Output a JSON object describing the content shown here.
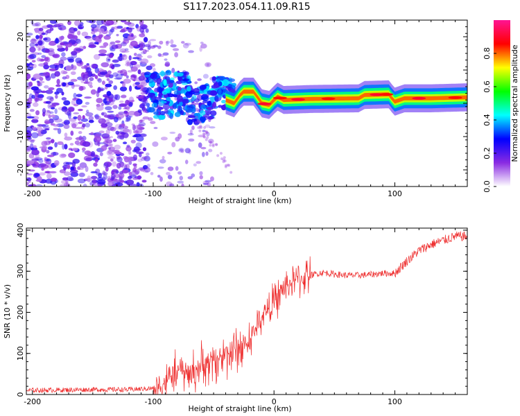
{
  "title": "S117.2023.054.11.09.R15",
  "chart_data": [
    {
      "type": "heatmap",
      "xlabel": "Height of straight line (km)",
      "ylabel": "Frequency (Hz)",
      "xlim": [
        -205,
        160
      ],
      "ylim": [
        -25,
        25
      ],
      "xticks": [
        -200,
        -100,
        0,
        100
      ],
      "yticks": [
        -20,
        -10,
        0,
        10,
        20
      ],
      "colorbar": {
        "label": "Normalized spectral amplitude",
        "range": [
          0,
          1
        ],
        "ticks": [
          0.0,
          0.2,
          0.4,
          0.6,
          0.8
        ],
        "colormap": [
          "#ffffff",
          "#8a2be2",
          "#0000ff",
          "#00ffff",
          "#00ff00",
          "#ffff00",
          "#ff0000",
          "#ff1493"
        ]
      },
      "tone_trace": [
        {
          "x": -40,
          "f": 1
        },
        {
          "x": -33,
          "f": 0
        },
        {
          "x": -28,
          "f": 2.5
        },
        {
          "x": -25,
          "f": 3.5
        },
        {
          "x": -17,
          "f": 3.5
        },
        {
          "x": -14,
          "f": 2
        },
        {
          "x": -10,
          "f": 0
        },
        {
          "x": -4,
          "f": -0.5
        },
        {
          "x": 0,
          "f": 1
        },
        {
          "x": 3,
          "f": 2
        },
        {
          "x": 8,
          "f": 1
        },
        {
          "x": 30,
          "f": 1.3
        },
        {
          "x": 70,
          "f": 1.5
        },
        {
          "x": 75,
          "f": 2.5
        },
        {
          "x": 95,
          "f": 2.7
        },
        {
          "x": 98,
          "f": 1.3
        },
        {
          "x": 100,
          "f": 0.5
        },
        {
          "x": 108,
          "f": 1.5
        },
        {
          "x": 130,
          "f": 1.5
        },
        {
          "x": 160,
          "f": 1.8
        }
      ]
    },
    {
      "type": "line",
      "xlabel": "Height of straight line (km)",
      "ylabel": "SNR (10 * v/v)",
      "xlim": [
        -205,
        160
      ],
      "ylim": [
        0,
        405
      ],
      "xticks": [
        -200,
        -100,
        0,
        100
      ],
      "yticks": [
        0,
        100,
        200,
        300,
        400
      ],
      "color": "#ee2a2a",
      "series": [
        {
          "x": [
            -205,
            -150,
            -120,
            -100,
            -90,
            -80,
            -70,
            -60,
            -50,
            -40,
            -30,
            -20,
            -10,
            0,
            10,
            20,
            30,
            40,
            50,
            60,
            70,
            80,
            90,
            100,
            110,
            120,
            130,
            140,
            150,
            160
          ],
          "y": [
            10,
            12,
            12,
            15,
            30,
            60,
            50,
            70,
            80,
            100,
            110,
            130,
            190,
            225,
            265,
            280,
            290,
            297,
            293,
            290,
            290,
            292,
            295,
            295,
            325,
            350,
            365,
            375,
            385,
            385
          ]
        }
      ]
    }
  ]
}
